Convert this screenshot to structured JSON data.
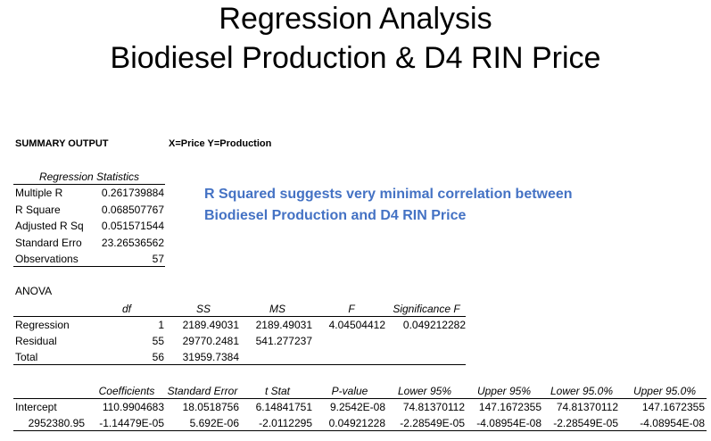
{
  "header": {
    "title_line1": "Regression Analysis",
    "title_line2": "Biodiesel Production & D4 RIN Price"
  },
  "summary": {
    "label": "SUMMARY OUTPUT",
    "variables": "X=Price Y=Production"
  },
  "regression_statistics": {
    "title": "Regression Statistics",
    "rows": [
      [
        "Multiple R",
        "0.261739884"
      ],
      [
        "R Square",
        "0.068507767"
      ],
      [
        "Adjusted R Sq",
        "0.051571544"
      ],
      [
        "Standard Erro",
        "23.26536562"
      ],
      [
        "Observations",
        "57"
      ]
    ]
  },
  "note": {
    "line1": "R Squared suggests very minimal correlation between",
    "line2": "Biodiesel Production and D4 RIN Price"
  },
  "anova": {
    "title": "ANOVA",
    "columns": [
      "df",
      "SS",
      "MS",
      "F",
      "Significance F"
    ],
    "rows": [
      [
        "Regression",
        "1",
        "2189.49031",
        "2189.49031",
        "4.04504412",
        "0.049212282"
      ],
      [
        "Residual",
        "55",
        "29770.2481",
        "541.277237"
      ],
      [
        "Total",
        "56",
        "31959.7384"
      ]
    ]
  },
  "coefficients": {
    "columns": [
      "Coefficients",
      "Standard Error",
      "t Stat",
      "P-value",
      "Lower 95%",
      "Upper 95%",
      "Lower 95.0%",
      "Upper 95.0%"
    ],
    "rows": [
      [
        "Intercept",
        "110.9904683",
        "18.0518756",
        "6.14841751",
        "9.2542E-08",
        "74.81370112",
        "147.1672355",
        "74.81370112",
        "147.1672355"
      ],
      [
        "2952380.95",
        "-1.14479E-05",
        "5.692E-06",
        "-2.0112295",
        "0.04921228",
        "-2.28549E-05",
        "-4.08954E-08",
        "-2.28549E-05",
        "-4.08954E-08"
      ]
    ]
  }
}
